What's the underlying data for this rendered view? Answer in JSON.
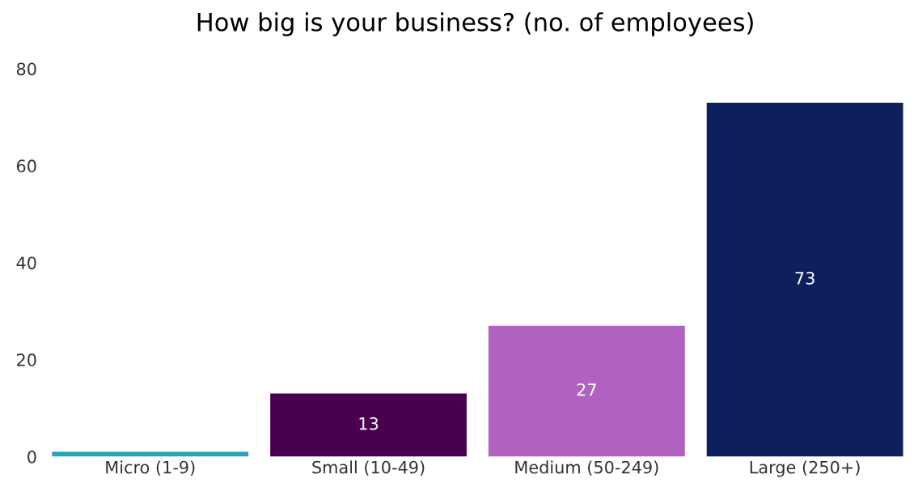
{
  "chart_data": {
    "type": "bar",
    "title": "How big is your business? (no. of employees)",
    "categories": [
      "Micro (1-9)",
      "Small (10-49)",
      "Medium (50-249)",
      "Large (250+)"
    ],
    "values": [
      1,
      13,
      27,
      73
    ],
    "colors": [
      "#27a3b5",
      "#4a0050",
      "#b062c0",
      "#0d1f5c"
    ],
    "value_labels": [
      null,
      "13",
      "27",
      "73"
    ],
    "ylim": [
      0,
      80
    ],
    "yticks": [
      0,
      20,
      40,
      60,
      80
    ],
    "grid": false
  }
}
